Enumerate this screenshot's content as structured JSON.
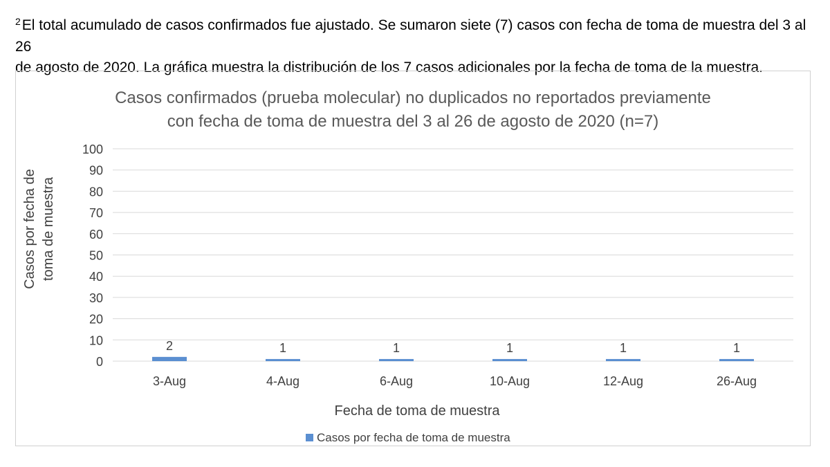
{
  "footnote": {
    "marker": "2",
    "line1": "El total acumulado de casos confirmados fue ajustado. Se sumaron siete (7) casos con fecha de toma de muestra del 3 al 26",
    "line2": "de agosto de 2020. La gráfica muestra la distribución de los 7 casos adicionales por la fecha de toma de la muestra."
  },
  "chart_data": {
    "type": "bar",
    "title_lines": [
      "Casos confirmados (prueba molecular) no duplicados no reportados previamente",
      "con fecha de toma de muestra del 3 al 26 de agosto de 2020 (n=7)"
    ],
    "xlabel": "Fecha de toma de muestra",
    "ylabel_lines": [
      "Casos por fecha de",
      "toma de muestra"
    ],
    "categories": [
      "3-Aug",
      "4-Aug",
      "6-Aug",
      "10-Aug",
      "12-Aug",
      "26-Aug"
    ],
    "series": [
      {
        "name": "Casos por fecha de toma de muestra",
        "values": [
          2,
          1,
          1,
          1,
          1,
          1
        ],
        "color": "#5b8fd1"
      }
    ],
    "data_labels": [
      "2",
      "1",
      "1",
      "1",
      "1",
      "1"
    ],
    "ylim": [
      0,
      100
    ],
    "yticks": [
      "0",
      "10",
      "20",
      "30",
      "40",
      "50",
      "60",
      "70",
      "80",
      "90",
      "100"
    ],
    "grid": true,
    "legend_position": "bottom",
    "gridline_color": "#d9d9d9",
    "title_color": "#595959",
    "text_color": "#404040"
  }
}
